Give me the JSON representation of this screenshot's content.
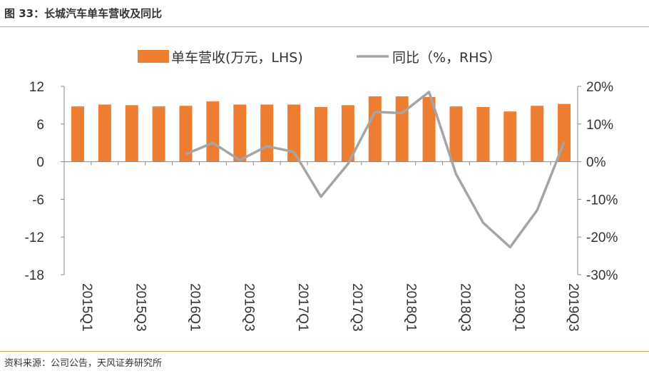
{
  "title": "图 33：长城汽车单车营收及同比",
  "source": "资料来源：公司公告，天风证券研究所",
  "chart_data": {
    "type": "bar+line",
    "categories": [
      "2015Q1",
      "2015Q2",
      "2015Q3",
      "2015Q4",
      "2016Q1",
      "2016Q2",
      "2016Q3",
      "2016Q4",
      "2017Q1",
      "2017Q2",
      "2017Q3",
      "2017Q4",
      "2018Q1",
      "2018Q2",
      "2018Q3",
      "2018Q4",
      "2019Q1",
      "2019Q2",
      "2019Q3"
    ],
    "x_tick_labels": [
      "2015Q1",
      "2015Q3",
      "2016Q1",
      "2016Q3",
      "2017Q1",
      "2017Q3",
      "2018Q1",
      "2018Q3",
      "2019Q1",
      "2019Q3"
    ],
    "series": [
      {
        "name": "单车营收(万元，LHS)",
        "type": "bar",
        "axis": "left",
        "color": "#ed7d31",
        "values": [
          8.8,
          9.1,
          9.0,
          8.8,
          8.9,
          9.6,
          9.1,
          9.1,
          9.1,
          8.7,
          9.0,
          10.4,
          10.4,
          10.3,
          8.8,
          8.7,
          8.0,
          8.9,
          9.2
        ]
      },
      {
        "name": "同比（%，RHS）",
        "type": "line",
        "axis": "right",
        "color": "#a5a5a5",
        "values": [
          null,
          null,
          null,
          null,
          2.0,
          5.0,
          0.4,
          4.1,
          2.6,
          -9.3,
          -0.6,
          13.2,
          12.9,
          18.5,
          -3.3,
          -16.2,
          -22.7,
          -12.9,
          5.2
        ]
      }
    ],
    "left_axis": {
      "ylim": [
        -18,
        12
      ],
      "ticks": [
        "-18",
        "-12",
        "-6",
        "0",
        "6",
        "12"
      ]
    },
    "right_axis": {
      "ylim": [
        -30,
        20
      ],
      "ticks": [
        "-30%",
        "-20%",
        "-10%",
        "0%",
        "10%",
        "20%"
      ]
    },
    "legend": "top",
    "grid": false
  }
}
